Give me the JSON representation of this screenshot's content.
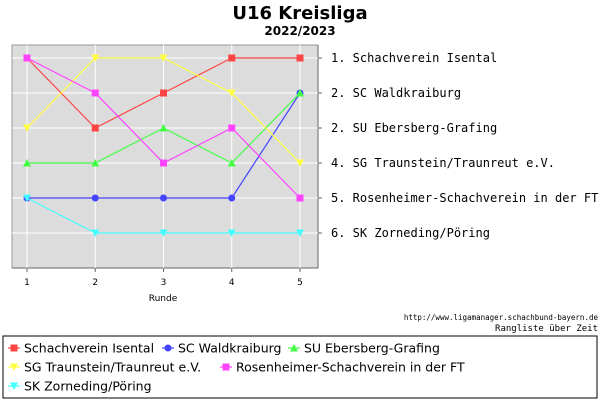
{
  "chart_data": {
    "type": "line",
    "title": "U16 Kreisliga",
    "subtitle": "2022/2023",
    "xlabel": "Runde",
    "ylabel": "",
    "x": [
      1,
      2,
      3,
      4,
      5
    ],
    "ylim": [
      1,
      6
    ],
    "y_inverted": true,
    "grid": true,
    "legend": "bottom",
    "rank_labels": [
      {
        "position": 1,
        "text": "1. Schachverein Isental"
      },
      {
        "position": 2,
        "text": "2. SC Waldkraiburg"
      },
      {
        "position": 3,
        "text": "2. SU Ebersberg-Grafing"
      },
      {
        "position": 4,
        "text": "4. SG Traunstein/Traunreut e.V."
      },
      {
        "position": 5,
        "text": "5. Rosenheimer-Schachverein in der FT"
      },
      {
        "position": 6,
        "text": "6. SK Zorneding/Pöring"
      }
    ],
    "series": [
      {
        "name": "Schachverein Isental",
        "values": [
          1,
          3,
          2,
          1,
          1
        ],
        "color": "#ff4444",
        "marker": "square"
      },
      {
        "name": "SC Waldkraiburg",
        "values": [
          5,
          5,
          5,
          5,
          2
        ],
        "color": "#4444ff",
        "marker": "circle"
      },
      {
        "name": "SU Ebersberg-Grafing",
        "values": [
          4,
          4,
          3,
          4,
          2
        ],
        "color": "#44ff44",
        "marker": "triangle-up"
      },
      {
        "name": "SG Traunstein/Traunreut e.V.",
        "values": [
          3,
          1,
          1,
          2,
          4
        ],
        "color": "#ffff44",
        "marker": "triangle-down"
      },
      {
        "name": "Rosenheimer-Schachverein in der FT",
        "values": [
          1,
          2,
          4,
          3,
          5
        ],
        "color": "#ff44ff",
        "marker": "square"
      },
      {
        "name": "SK Zorneding/Pöring",
        "values": [
          5,
          6,
          6,
          6,
          6
        ],
        "color": "#44ffff",
        "marker": "triangle-down"
      }
    ]
  },
  "source_text": "http://www.ligamanager.schachbund-bayern.de",
  "note_text": "Rangliste über Zeit"
}
